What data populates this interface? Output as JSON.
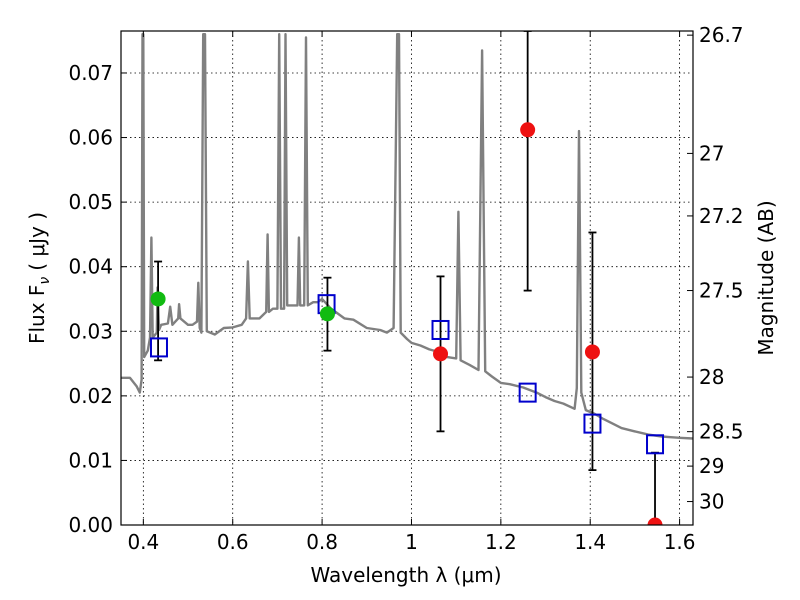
{
  "chart_data": {
    "type": "scatter",
    "xlabel": "Wavelength  λ (μm)",
    "ylabel": "Flux  F",
    "ylabel_sub": "ν",
    "ylabel_unit": "( μJy )",
    "y2label": "Magnitude (AB)",
    "xlim": [
      0.35,
      1.63
    ],
    "ylim": [
      0.0,
      0.0765
    ],
    "grid": true,
    "x_ticks": [
      0.4,
      0.6,
      0.8,
      1.0,
      1.2,
      1.4,
      1.6
    ],
    "x_tick_labels": [
      "0.4",
      "0.6",
      "0.8",
      "1",
      "1.2",
      "1.4",
      "1.6"
    ],
    "y_ticks": [
      0.0,
      0.01,
      0.02,
      0.03,
      0.04,
      0.05,
      0.06,
      0.07
    ],
    "y_tick_labels": [
      "0.00",
      "0.01",
      "0.02",
      "0.03",
      "0.04",
      "0.05",
      "0.06",
      "0.07"
    ],
    "y2_ticks": [
      26.7,
      27.0,
      27.2,
      27.5,
      28.0,
      28.5,
      29.0,
      30.0
    ],
    "y2_tick_labels": [
      "26.7",
      "27",
      "27.2",
      "27.5",
      "28",
      "28.5",
      "29",
      "30"
    ],
    "colors": {
      "template": "#808080",
      "model": "#0000cc",
      "green": "#11bb11",
      "red": "#ee1111",
      "error": "#000000"
    },
    "series": [
      {
        "kind": "template-line",
        "points": [
          [
            0.35,
            0.0228
          ],
          [
            0.37,
            0.0228
          ],
          [
            0.385,
            0.0215
          ],
          [
            0.392,
            0.0205
          ],
          [
            0.396,
            0.0225
          ],
          [
            0.398,
            0.076
          ],
          [
            0.4,
            0.076
          ],
          [
            0.402,
            0.026
          ],
          [
            0.41,
            0.027
          ],
          [
            0.415,
            0.029
          ],
          [
            0.418,
            0.0445
          ],
          [
            0.421,
            0.029
          ],
          [
            0.43,
            0.0298
          ],
          [
            0.432,
            0.0368
          ],
          [
            0.435,
            0.0302
          ],
          [
            0.44,
            0.031
          ],
          [
            0.455,
            0.0312
          ],
          [
            0.46,
            0.0338
          ],
          [
            0.465,
            0.031
          ],
          [
            0.478,
            0.032
          ],
          [
            0.48,
            0.0342
          ],
          [
            0.483,
            0.032
          ],
          [
            0.5,
            0.031
          ],
          [
            0.51,
            0.031
          ],
          [
            0.52,
            0.0315
          ],
          [
            0.523,
            0.0375
          ],
          [
            0.526,
            0.0305
          ],
          [
            0.53,
            0.0298
          ],
          [
            0.534,
            0.076
          ],
          [
            0.538,
            0.076
          ],
          [
            0.542,
            0.03
          ],
          [
            0.56,
            0.0295
          ],
          [
            0.58,
            0.0305
          ],
          [
            0.6,
            0.0306
          ],
          [
            0.62,
            0.031
          ],
          [
            0.63,
            0.032
          ],
          [
            0.634,
            0.0408
          ],
          [
            0.638,
            0.032
          ],
          [
            0.66,
            0.032
          ],
          [
            0.675,
            0.033
          ],
          [
            0.678,
            0.045
          ],
          [
            0.681,
            0.033
          ],
          [
            0.69,
            0.0335
          ],
          [
            0.7,
            0.0335
          ],
          [
            0.704,
            0.076
          ],
          [
            0.708,
            0.0335
          ],
          [
            0.715,
            0.0335
          ],
          [
            0.718,
            0.076
          ],
          [
            0.722,
            0.034
          ],
          [
            0.73,
            0.034
          ],
          [
            0.74,
            0.034
          ],
          [
            0.745,
            0.034
          ],
          [
            0.748,
            0.0445
          ],
          [
            0.751,
            0.034
          ],
          [
            0.76,
            0.034
          ],
          [
            0.764,
            0.0755
          ],
          [
            0.768,
            0.034
          ],
          [
            0.78,
            0.0345
          ],
          [
            0.79,
            0.0345
          ],
          [
            0.8,
            0.035
          ],
          [
            0.82,
            0.0335
          ],
          [
            0.83,
            0.033
          ],
          [
            0.85,
            0.032
          ],
          [
            0.87,
            0.0318
          ],
          [
            0.9,
            0.0305
          ],
          [
            0.93,
            0.0302
          ],
          [
            0.945,
            0.0298
          ],
          [
            0.96,
            0.0305
          ],
          [
            0.968,
            0.076
          ],
          [
            0.972,
            0.076
          ],
          [
            0.976,
            0.0298
          ],
          [
            0.99,
            0.0288
          ],
          [
            1.0,
            0.0282
          ],
          [
            1.02,
            0.0278
          ],
          [
            1.04,
            0.0272
          ],
          [
            1.06,
            0.0268
          ],
          [
            1.08,
            0.026
          ],
          [
            1.1,
            0.0258
          ],
          [
            1.105,
            0.0485
          ],
          [
            1.11,
            0.0255
          ],
          [
            1.13,
            0.0248
          ],
          [
            1.15,
            0.024
          ],
          [
            1.158,
            0.0735
          ],
          [
            1.165,
            0.0238
          ],
          [
            1.18,
            0.023
          ],
          [
            1.2,
            0.022
          ],
          [
            1.22,
            0.0218
          ],
          [
            1.25,
            0.0213
          ],
          [
            1.28,
            0.0205
          ],
          [
            1.3,
            0.0198
          ],
          [
            1.32,
            0.0192
          ],
          [
            1.34,
            0.0188
          ],
          [
            1.365,
            0.018
          ],
          [
            1.37,
            0.0212
          ],
          [
            1.375,
            0.061
          ],
          [
            1.38,
            0.0205
          ],
          [
            1.39,
            0.0178
          ],
          [
            1.41,
            0.0172
          ],
          [
            1.43,
            0.0164
          ],
          [
            1.45,
            0.0157
          ],
          [
            1.47,
            0.015
          ],
          [
            1.5,
            0.0145
          ],
          [
            1.53,
            0.014
          ],
          [
            1.56,
            0.0137
          ],
          [
            1.58,
            0.0136
          ],
          [
            1.6,
            0.0135
          ],
          [
            1.63,
            0.0134
          ]
        ]
      },
      {
        "kind": "model-squares",
        "points": [
          [
            0.435,
            0.0275
          ],
          [
            0.81,
            0.0342
          ],
          [
            1.065,
            0.0302
          ],
          [
            1.26,
            0.0205
          ],
          [
            1.405,
            0.0157
          ],
          [
            1.545,
            0.0125
          ]
        ]
      },
      {
        "kind": "observed-points",
        "points": [
          {
            "x": 0.433,
            "y": 0.035,
            "lo": 0.0255,
            "hi": 0.0408,
            "color": "green"
          },
          {
            "x": 0.812,
            "y": 0.0327,
            "lo": 0.027,
            "hi": 0.0383,
            "color": "green"
          },
          {
            "x": 1.065,
            "y": 0.0265,
            "lo": 0.0145,
            "hi": 0.0385,
            "color": "red"
          },
          {
            "x": 1.26,
            "y": 0.0612,
            "lo": 0.0363,
            "hi": 0.0765,
            "color": "red"
          },
          {
            "x": 1.405,
            "y": 0.0268,
            "lo": 0.0085,
            "hi": 0.0453,
            "color": "red"
          },
          {
            "x": 1.545,
            "y": 0.0,
            "lo": 0.0,
            "hi": 0.0112,
            "color": "red"
          }
        ]
      }
    ]
  }
}
